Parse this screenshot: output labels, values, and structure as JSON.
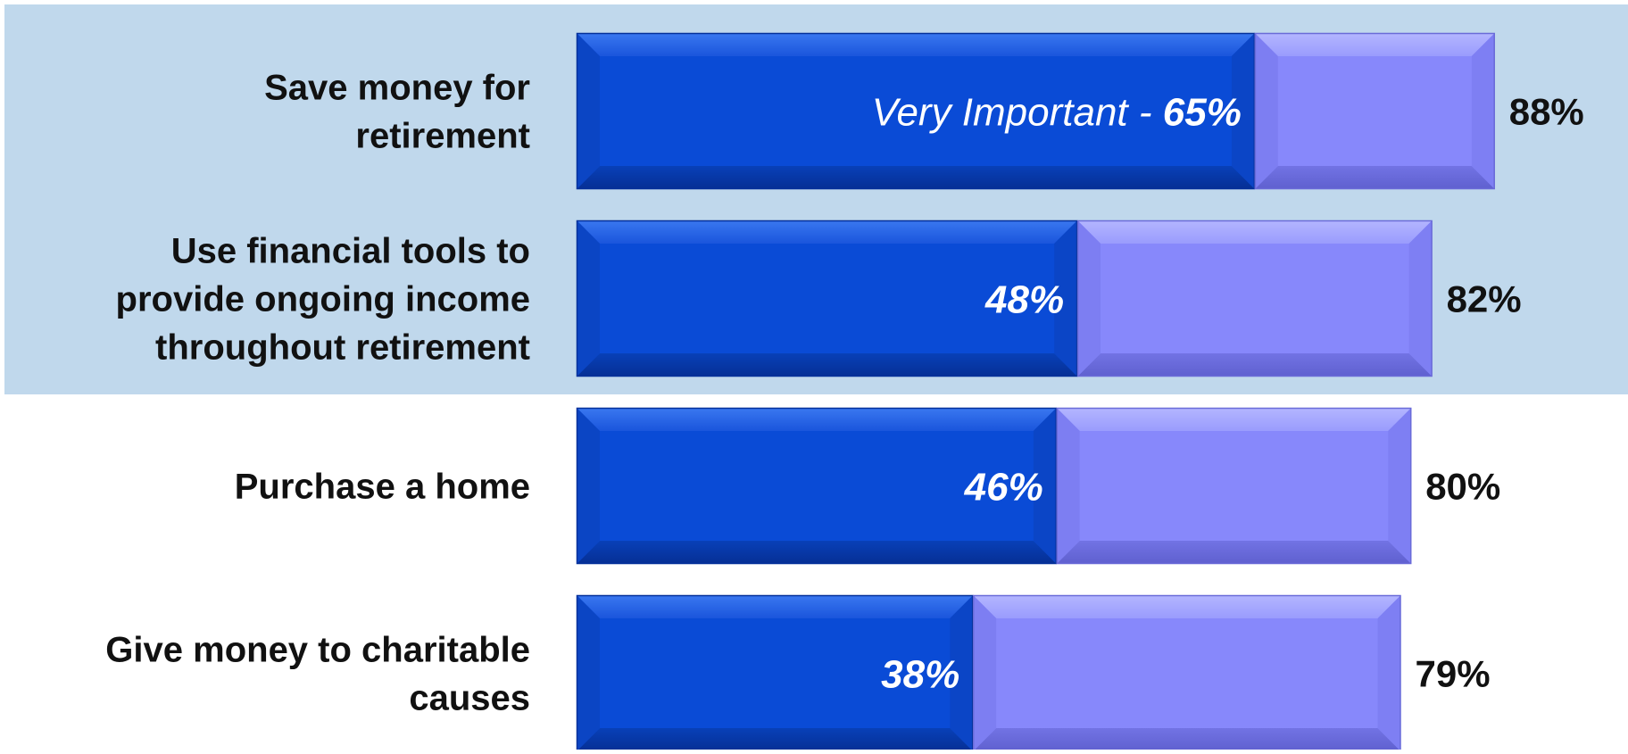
{
  "chart_data": {
    "type": "bar",
    "stacked": true,
    "orientation": "horizontal",
    "categories": [
      [
        "Save money for",
        "retirement"
      ],
      [
        "Use financial tools to",
        "provide ongoing income",
        "throughout retirement"
      ],
      [
        "Purchase a home"
      ],
      [
        "Give money to charitable",
        "causes"
      ]
    ],
    "series": [
      {
        "name": "Very Important",
        "values": [
          65,
          48,
          46,
          38
        ],
        "color": "#0a4bd6"
      },
      {
        "values": [
          23,
          34,
          34,
          41
        ],
        "color": "#8788fb"
      }
    ],
    "inner_labels": [
      "65%",
      "48%",
      "46%",
      "38%"
    ],
    "first_label_prefix": "Very Important - ",
    "total_labels": [
      "88%",
      "82%",
      "80%",
      "79%"
    ],
    "highlighted_rows": [
      0,
      1
    ],
    "highlight_color": "#c0d8ec",
    "xlim": [
      0,
      100
    ]
  }
}
